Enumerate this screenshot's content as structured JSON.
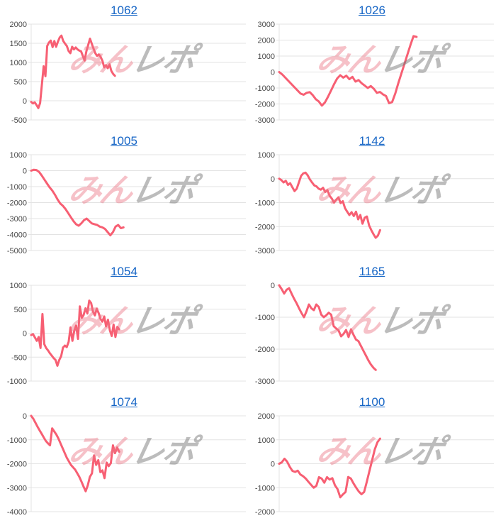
{
  "watermark": {
    "part1": "みん",
    "part2": "レポ"
  },
  "colors": {
    "line": "#f75f73",
    "link": "#1766c6",
    "grid": "#e3e3e3",
    "axis_label": "#4a4a4a",
    "watermark_pink": "#eb7685",
    "watermark_gray": "#7a7a7a"
  },
  "chart_data": [
    {
      "type": "line",
      "title": "1062",
      "ylim": [
        -500,
        2000
      ],
      "ystep": 500,
      "xlabel": "",
      "ylabel": "",
      "grid": true,
      "legend": "none",
      "span_fraction": 0.39,
      "values": [
        -30,
        -70,
        -40,
        -110,
        -190,
        -60,
        420,
        900,
        640,
        1430,
        1520,
        1570,
        1400,
        1560,
        1410,
        1540,
        1650,
        1700,
        1560,
        1490,
        1430,
        1300,
        1240,
        1410,
        1340,
        1390,
        1340,
        1310,
        1290,
        1170,
        1050,
        1290,
        1460,
        1620,
        1490,
        1360,
        1240,
        1170,
        1210,
        1140,
        1040,
        870,
        930,
        850,
        950,
        780,
        700,
        650
      ]
    },
    {
      "type": "line",
      "title": "1026",
      "ylim": [
        -3000,
        3000
      ],
      "ystep": 1000,
      "xlabel": "",
      "ylabel": "",
      "grid": true,
      "legend": "none",
      "span_fraction": 0.64,
      "values": [
        0,
        -150,
        -350,
        -550,
        -750,
        -950,
        -1150,
        -1350,
        -1420,
        -1300,
        -1260,
        -1450,
        -1700,
        -1850,
        -2100,
        -1900,
        -1550,
        -1150,
        -750,
        -400,
        -200,
        -350,
        -230,
        -450,
        -300,
        -600,
        -500,
        -700,
        -850,
        -1000,
        -880,
        -1050,
        -1300,
        -1250,
        -1400,
        -1500,
        -1950,
        -1880,
        -1350,
        -700,
        -100,
        500,
        1100,
        1700,
        2250,
        2200
      ]
    },
    {
      "type": "line",
      "title": "1005",
      "ylim": [
        -5000,
        1000
      ],
      "ystep": 1000,
      "xlabel": "",
      "ylabel": "",
      "grid": true,
      "legend": "none",
      "span_fraction": 0.43,
      "values": [
        0,
        60,
        40,
        -80,
        -300,
        -550,
        -800,
        -1050,
        -1250,
        -1500,
        -1800,
        -2050,
        -2200,
        -2400,
        -2650,
        -2900,
        -3150,
        -3350,
        -3450,
        -3300,
        -3100,
        -3000,
        -3150,
        -3300,
        -3350,
        -3400,
        -3500,
        -3550,
        -3650,
        -3850,
        -4050,
        -3850,
        -3500,
        -3400,
        -3600,
        -3550
      ]
    },
    {
      "type": "line",
      "title": "1142",
      "ylim": [
        -3000,
        1000
      ],
      "ystep": 1000,
      "xlabel": "",
      "ylabel": "",
      "grid": true,
      "legend": "none",
      "span_fraction": 0.47,
      "values": [
        0,
        -60,
        -160,
        -90,
        -260,
        -190,
        -360,
        -520,
        -420,
        -150,
        120,
        220,
        250,
        140,
        -30,
        -160,
        -280,
        -320,
        -420,
        -460,
        -380,
        -560,
        -480,
        -720,
        -830,
        -1000,
        -880,
        -780,
        -1020,
        -940,
        -1230,
        -1380,
        -1520,
        -1400,
        -1560,
        -1380,
        -1700,
        -1520,
        -1880,
        -1630,
        -1580,
        -1950,
        -2150,
        -2320,
        -2470,
        -2380,
        -2150
      ]
    },
    {
      "type": "line",
      "title": "1054",
      "ylim": [
        -1000,
        1000
      ],
      "ystep": 500,
      "xlabel": "",
      "ylabel": "",
      "grid": true,
      "legend": "none",
      "span_fraction": 0.41,
      "values": [
        -40,
        -20,
        -90,
        -160,
        -80,
        -310,
        400,
        -230,
        -310,
        -360,
        -420,
        -470,
        -520,
        -560,
        -680,
        -560,
        -480,
        -300,
        -260,
        -290,
        -180,
        120,
        -160,
        50,
        160,
        -120,
        560,
        320,
        380,
        520,
        410,
        680,
        630,
        450,
        370,
        510,
        420,
        300,
        240,
        350,
        140,
        280,
        60,
        -60,
        180,
        -80,
        130,
        80
      ]
    },
    {
      "type": "line",
      "title": "1165",
      "ylim": [
        -3000,
        0
      ],
      "ystep": 1000,
      "xlabel": "",
      "ylabel": "",
      "grid": true,
      "legend": "none",
      "span_fraction": 0.45,
      "values": [
        0,
        -120,
        -260,
        -140,
        -90,
        -260,
        -420,
        -560,
        -720,
        -870,
        -1000,
        -820,
        -600,
        -720,
        -780,
        -600,
        -680,
        -920,
        -1000,
        -940,
        -860,
        -920,
        -1280,
        -1350,
        -1420,
        -1600,
        -1520,
        -1400,
        -1620,
        -1380,
        -1550,
        -1700,
        -1750,
        -1900,
        -2050,
        -2200,
        -2350,
        -2480,
        -2580,
        -2650
      ]
    },
    {
      "type": "line",
      "title": "1074",
      "ylim": [
        -4000,
        0
      ],
      "ystep": 1000,
      "xlabel": "",
      "ylabel": "",
      "grid": true,
      "legend": "none",
      "span_fraction": 0.41,
      "values": [
        0,
        -120,
        -280,
        -450,
        -600,
        -750,
        -900,
        -1050,
        -1150,
        -1230,
        -520,
        -650,
        -780,
        -950,
        -1150,
        -1350,
        -1550,
        -1750,
        -1900,
        -2050,
        -2150,
        -2250,
        -2400,
        -2550,
        -2750,
        -2950,
        -3150,
        -2900,
        -2550,
        -2400,
        -1650,
        -2050,
        -1850,
        -2350,
        -2280,
        -2600,
        -1950,
        -2100,
        -1980,
        -1230,
        -1560,
        -1320,
        -1500
      ]
    },
    {
      "type": "line",
      "title": "1100",
      "ylim": [
        -2000,
        2000
      ],
      "ystep": 1000,
      "xlabel": "",
      "ylabel": "",
      "grid": true,
      "legend": "none",
      "span_fraction": 0.47,
      "values": [
        0,
        60,
        210,
        90,
        -130,
        -300,
        -340,
        -290,
        -450,
        -520,
        -620,
        -750,
        -880,
        -1000,
        -920,
        -560,
        -620,
        -790,
        -560,
        -660,
        -600,
        -900,
        -1060,
        -1400,
        -1280,
        -1180,
        -550,
        -620,
        -820,
        -1000,
        -1160,
        -1270,
        -1180,
        -750,
        -300,
        150,
        600,
        900,
        1050
      ]
    }
  ]
}
